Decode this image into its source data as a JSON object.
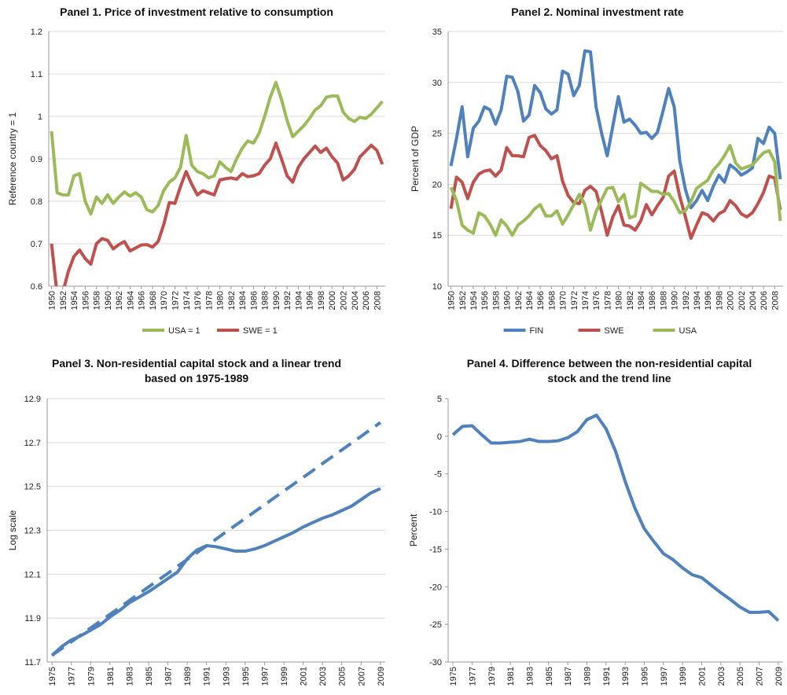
{
  "chart_data": [
    {
      "type": "line",
      "title": "Panel 1. Price of investment relative to consumption",
      "ylabel": "Reference country = 1",
      "x": [
        1950,
        1951,
        1952,
        1953,
        1954,
        1955,
        1956,
        1957,
        1958,
        1959,
        1960,
        1961,
        1962,
        1963,
        1964,
        1965,
        1966,
        1967,
        1968,
        1969,
        1970,
        1971,
        1972,
        1973,
        1974,
        1975,
        1976,
        1977,
        1978,
        1979,
        1980,
        1981,
        1982,
        1983,
        1984,
        1985,
        1986,
        1987,
        1988,
        1989,
        1990,
        1991,
        1992,
        1993,
        1994,
        1995,
        1996,
        1997,
        1998,
        1999,
        2000,
        2001,
        2002,
        2003,
        2004,
        2005,
        2006,
        2007,
        2008,
        2009
      ],
      "xlim": [
        1949.5,
        2009.5
      ],
      "xticks": [
        1950,
        1952,
        1954,
        1956,
        1958,
        1960,
        1962,
        1964,
        1966,
        1968,
        1970,
        1972,
        1974,
        1976,
        1978,
        1980,
        1982,
        1984,
        1986,
        1988,
        1990,
        1992,
        1994,
        1996,
        1998,
        2000,
        2002,
        2004,
        2006,
        2008
      ],
      "ylim": [
        0.6,
        1.2
      ],
      "yticks": [
        0.6,
        0.7,
        0.8,
        0.9,
        1,
        1.1,
        1.2
      ],
      "grid": true,
      "legend": "bottom",
      "series": [
        {
          "name": "USA = 1",
          "color": "#9bbb59",
          "values": [
            0.965,
            0.82,
            0.815,
            0.815,
            0.86,
            0.865,
            0.8,
            0.77,
            0.81,
            0.795,
            0.815,
            0.795,
            0.81,
            0.822,
            0.812,
            0.82,
            0.81,
            0.78,
            0.775,
            0.79,
            0.825,
            0.845,
            0.855,
            0.88,
            0.955,
            0.885,
            0.87,
            0.865,
            0.855,
            0.86,
            0.893,
            0.88,
            0.87,
            0.9,
            0.925,
            0.942,
            0.937,
            0.96,
            1.0,
            1.045,
            1.08,
            1.04,
            0.99,
            0.952,
            0.965,
            0.978,
            0.995,
            1.015,
            1.025,
            1.045,
            1.048,
            1.048,
            1.01,
            0.995,
            0.988,
            0.998,
            0.995,
            1.005,
            1.02,
            1.035
          ]
        },
        {
          "name": "SWE = 1",
          "color": "#c0504d",
          "values": [
            0.7,
            0.58,
            0.585,
            0.635,
            0.67,
            0.685,
            0.665,
            0.652,
            0.7,
            0.712,
            0.708,
            0.688,
            0.698,
            0.705,
            0.683,
            0.69,
            0.697,
            0.698,
            0.692,
            0.705,
            0.745,
            0.797,
            0.795,
            0.835,
            0.87,
            0.84,
            0.815,
            0.825,
            0.82,
            0.815,
            0.85,
            0.853,
            0.855,
            0.852,
            0.865,
            0.858,
            0.86,
            0.865,
            0.885,
            0.9,
            0.937,
            0.9,
            0.86,
            0.845,
            0.88,
            0.9,
            0.915,
            0.93,
            0.915,
            0.925,
            0.905,
            0.89,
            0.85,
            0.86,
            0.875,
            0.905,
            0.918,
            0.932,
            0.92,
            0.887
          ]
        }
      ]
    },
    {
      "type": "line",
      "title": "Panel 2. Nominal investment rate",
      "ylabel": "Percent of GDP",
      "x": [
        1950,
        1951,
        1952,
        1953,
        1954,
        1955,
        1956,
        1957,
        1958,
        1959,
        1960,
        1961,
        1962,
        1963,
        1964,
        1965,
        1966,
        1967,
        1968,
        1969,
        1970,
        1971,
        1972,
        1973,
        1974,
        1975,
        1976,
        1977,
        1978,
        1979,
        1980,
        1981,
        1982,
        1983,
        1984,
        1985,
        1986,
        1987,
        1988,
        1989,
        1990,
        1991,
        1992,
        1993,
        1994,
        1995,
        1996,
        1997,
        1998,
        1999,
        2000,
        2001,
        2002,
        2003,
        2004,
        2005,
        2006,
        2007,
        2008,
        2009
      ],
      "xlim": [
        1949.5,
        2009.5
      ],
      "xticks": [
        1950,
        1952,
        1954,
        1956,
        1958,
        1960,
        1962,
        1964,
        1966,
        1968,
        1970,
        1972,
        1974,
        1976,
        1978,
        1980,
        1982,
        1984,
        1986,
        1988,
        1990,
        1992,
        1994,
        1996,
        1998,
        2000,
        2002,
        2004,
        2006,
        2008
      ],
      "ylim": [
        10,
        35
      ],
      "yticks": [
        10,
        15,
        20,
        25,
        30,
        35
      ],
      "grid": true,
      "legend": "bottom",
      "series": [
        {
          "name": "FIN",
          "color": "#4f81bd",
          "values": [
            21.8,
            24.5,
            27.6,
            22.7,
            25.5,
            26.2,
            27.6,
            27.3,
            25.9,
            27.3,
            30.6,
            30.5,
            29.1,
            26.2,
            26.8,
            29.7,
            29.0,
            27.4,
            26.9,
            27.3,
            31.1,
            30.8,
            28.7,
            29.7,
            33.1,
            33.0,
            27.6,
            25.0,
            22.8,
            25.7,
            28.6,
            26.1,
            26.4,
            25.8,
            25.0,
            25.1,
            24.5,
            25.1,
            27.2,
            29.4,
            27.6,
            22.3,
            19.5,
            17.7,
            18.4,
            19.4,
            18.4,
            19.8,
            20.9,
            20.2,
            21.9,
            21.5,
            20.9,
            21.2,
            21.6,
            24.5,
            24.0,
            25.6,
            25.0,
            20.5
          ]
        },
        {
          "name": "SWE",
          "color": "#c0504d",
          "values": [
            17.6,
            20.7,
            20.2,
            18.6,
            20.2,
            21.0,
            21.3,
            21.4,
            20.8,
            21.4,
            23.6,
            22.8,
            22.8,
            22.7,
            24.6,
            24.8,
            23.8,
            23.3,
            22.5,
            22.8,
            20.3,
            18.9,
            18.2,
            18.1,
            19.4,
            19.8,
            19.3,
            17.3,
            15.0,
            16.8,
            17.9,
            16.0,
            15.9,
            15.5,
            16.4,
            18.0,
            17.0,
            17.9,
            18.7,
            20.8,
            21.3,
            18.8,
            16.8,
            14.7,
            16.0,
            17.2,
            17.0,
            16.4,
            17.1,
            17.4,
            18.4,
            17.9,
            17.1,
            16.8,
            17.2,
            18.1,
            19.2,
            20.8,
            20.6,
            17.5
          ]
        },
        {
          "name": "USA",
          "color": "#9bbb59",
          "values": [
            19.7,
            18.4,
            16.0,
            15.5,
            15.2,
            17.2,
            16.9,
            16.1,
            15.0,
            16.5,
            15.9,
            15.0,
            16.0,
            16.4,
            16.9,
            17.6,
            18.0,
            16.9,
            16.9,
            17.4,
            16.1,
            17.0,
            18.0,
            19.0,
            18.0,
            15.5,
            17.3,
            18.5,
            19.6,
            19.7,
            18.3,
            19.0,
            16.7,
            16.9,
            20.1,
            19.7,
            19.3,
            19.3,
            19.0,
            19.1,
            18.3,
            17.2,
            17.4,
            18.3,
            19.6,
            20.0,
            20.4,
            21.4,
            22.0,
            22.8,
            23.8,
            22.1,
            21.5,
            21.7,
            21.9,
            22.5,
            23.1,
            23.3,
            22.2,
            16.4
          ]
        }
      ]
    },
    {
      "type": "line",
      "title": "Panel 3. Non-residential capital stock and a linear trend based on 1975-1989",
      "ylabel": "Log scale",
      "x": [
        1975,
        1976,
        1977,
        1978,
        1979,
        1980,
        1981,
        1982,
        1983,
        1984,
        1985,
        1986,
        1987,
        1988,
        1989,
        1990,
        1991,
        1992,
        1993,
        1994,
        1995,
        1996,
        1997,
        1998,
        1999,
        2000,
        2001,
        2002,
        2003,
        2004,
        2005,
        2006,
        2007,
        2008,
        2009
      ],
      "xlim": [
        1974.5,
        2009.5
      ],
      "xticks": [
        1975,
        1977,
        1979,
        1981,
        1983,
        1985,
        1987,
        1989,
        1991,
        1993,
        1995,
        1997,
        1999,
        2001,
        2003,
        2005,
        2007,
        2009
      ],
      "ylim": [
        11.7,
        12.9
      ],
      "yticks": [
        11.7,
        11.9,
        12.1,
        12.3,
        12.5,
        12.7,
        12.9
      ],
      "grid": true,
      "series": [
        {
          "color": "#4f81bd",
          "dashed": true,
          "values": [
            11.73,
            11.761,
            11.792,
            11.824,
            11.855,
            11.886,
            11.917,
            11.948,
            11.98,
            12.011,
            12.042,
            12.073,
            12.104,
            12.136,
            12.167,
            12.198,
            12.229,
            12.26,
            12.292,
            12.323,
            12.354,
            12.385,
            12.416,
            12.448,
            12.479,
            12.51,
            12.541,
            12.572,
            12.604,
            12.635,
            12.666,
            12.697,
            12.728,
            12.76,
            12.791
          ]
        },
        {
          "color": "#4f81bd",
          "dashed": false,
          "values": [
            11.73,
            11.77,
            11.8,
            11.82,
            11.845,
            11.87,
            11.905,
            11.935,
            11.97,
            11.995,
            12.02,
            12.05,
            12.08,
            12.11,
            12.17,
            12.21,
            12.23,
            12.225,
            12.215,
            12.205,
            12.205,
            12.215,
            12.23,
            12.25,
            12.27,
            12.29,
            12.315,
            12.335,
            12.355,
            12.37,
            12.39,
            12.41,
            12.44,
            12.47,
            12.49
          ]
        }
      ]
    },
    {
      "type": "line",
      "title": "Panel 4. Difference between the non-residential capital stock and the trend line",
      "ylabel": "Percent",
      "x": [
        1975,
        1976,
        1977,
        1978,
        1979,
        1980,
        1981,
        1982,
        1983,
        1984,
        1985,
        1986,
        1987,
        1988,
        1989,
        1990,
        1991,
        1992,
        1993,
        1994,
        1995,
        1996,
        1997,
        1998,
        1999,
        2000,
        2001,
        2002,
        2003,
        2004,
        2005,
        2006,
        2007,
        2008,
        2009
      ],
      "xlim": [
        1974.5,
        2009.5
      ],
      "xticks": [
        1975,
        1977,
        1979,
        1981,
        1983,
        1985,
        1987,
        1989,
        1991,
        1993,
        1995,
        1997,
        1999,
        2001,
        2003,
        2005,
        2007,
        2009
      ],
      "ylim": [
        -30,
        5
      ],
      "yticks": [
        -30,
        -25,
        -20,
        -15,
        -10,
        -5,
        0,
        5
      ],
      "grid": false,
      "series": [
        {
          "color": "#4f81bd",
          "dashed": false,
          "values": [
            0.2,
            1.3,
            1.4,
            0.2,
            -0.9,
            -0.9,
            -0.8,
            -0.7,
            -0.4,
            -0.7,
            -0.7,
            -0.6,
            -0.2,
            0.6,
            2.2,
            2.8,
            1.0,
            -2.0,
            -6.0,
            -9.5,
            -12.3,
            -14.0,
            -15.6,
            -16.4,
            -17.5,
            -18.4,
            -18.8,
            -19.8,
            -20.8,
            -21.7,
            -22.7,
            -23.4,
            -23.4,
            -23.3,
            -24.5
          ]
        }
      ]
    }
  ]
}
